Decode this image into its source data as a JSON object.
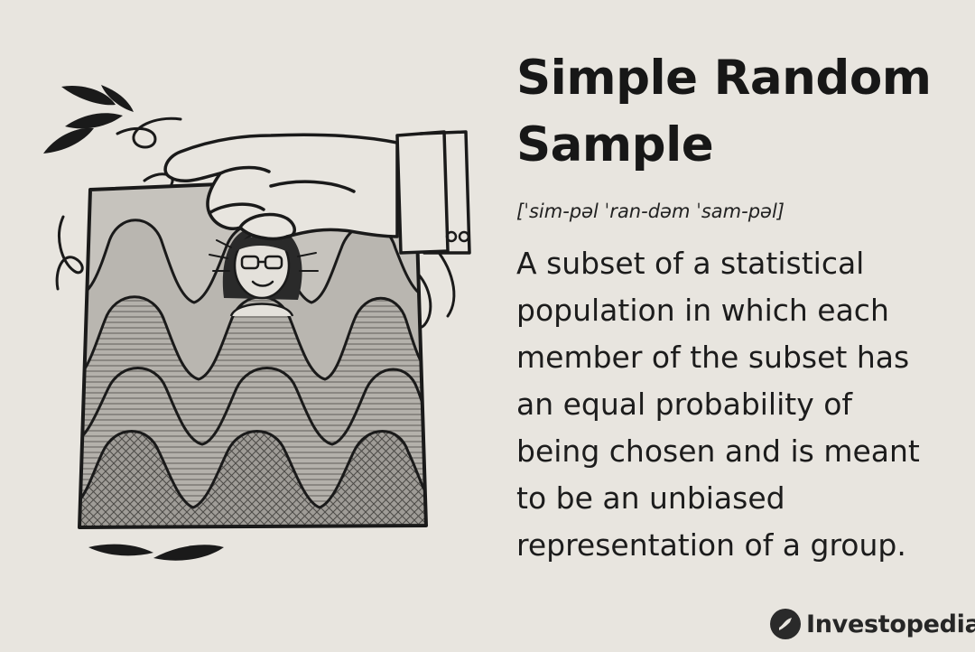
{
  "title": {
    "line1": "Simple Random",
    "line2": "Sample"
  },
  "pronunciation": "[ˈsim-pəl ˈran-dəm ˈsam-pəl]",
  "definition": {
    "lines": [
      "A subset of a statistical",
      "population in which each",
      "member of the subset has",
      "an equal probability of",
      "being chosen and is meant",
      "to be an unbiased",
      "representation of a group."
    ]
  },
  "logo": {
    "text": "Investopedia",
    "icon": "investopedia-logo-icon"
  },
  "illustration": {
    "description_icon": "hand-picking-person-from-crowd-illustration"
  },
  "colors": {
    "background": "#e8e5df",
    "ink": "#1b1b1b",
    "panel_light": "#c9c6c0",
    "panel_mid": "#a9a6a1",
    "panel_dark": "#8e8b86"
  }
}
